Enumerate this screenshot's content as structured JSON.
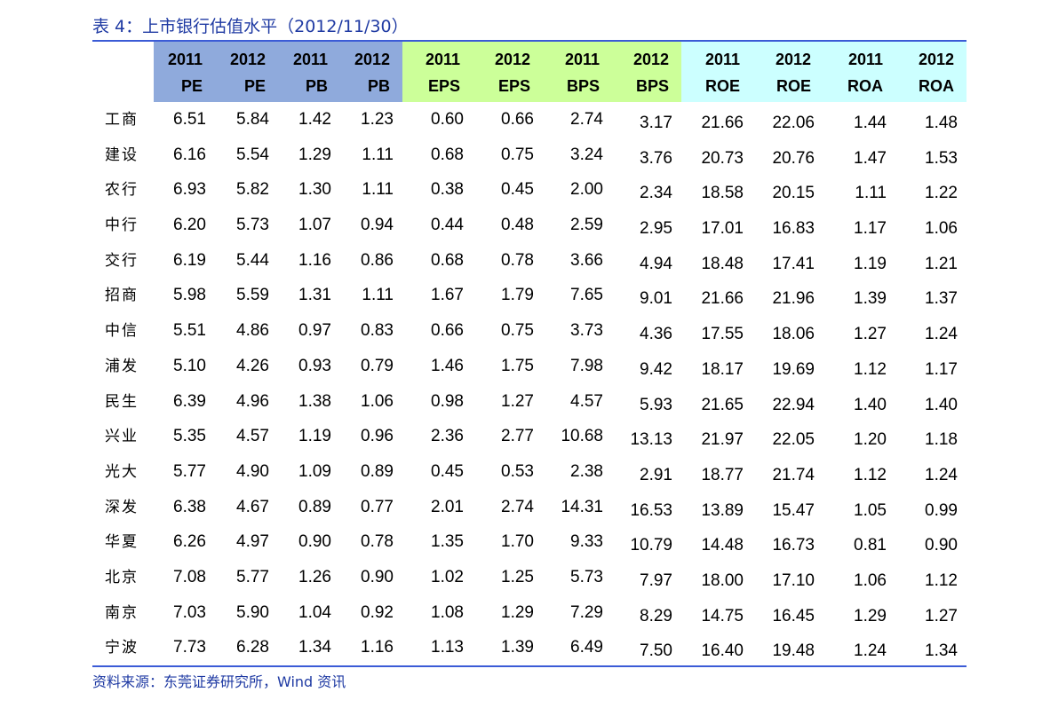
{
  "title": "表 4：上市银行估值水平（2012/11/30）",
  "source": "资料来源：东莞证券研究所，Wind 资讯",
  "colors": {
    "title": "#1f3aa3",
    "rule": "#3b5bd6",
    "group_pe_pb": "#8faadc",
    "group_eps_bps": "#ccff99",
    "group_roe_roa": "#ccffff"
  },
  "columns": [
    {
      "year": "2011",
      "metric": "PE"
    },
    {
      "year": "2012",
      "metric": "PE"
    },
    {
      "year": "2011",
      "metric": "PB"
    },
    {
      "year": "2012",
      "metric": "PB"
    },
    {
      "year": "2011",
      "metric": "EPS"
    },
    {
      "year": "2012",
      "metric": "EPS"
    },
    {
      "year": "2011",
      "metric": "BPS"
    },
    {
      "year": "2012",
      "metric": "BPS"
    },
    {
      "year": "2011",
      "metric": "ROE"
    },
    {
      "year": "2012",
      "metric": "ROE"
    },
    {
      "year": "2011",
      "metric": "ROA"
    },
    {
      "year": "2012",
      "metric": "ROA"
    }
  ],
  "rows": [
    {
      "bank": "工商",
      "values": [
        "6.51",
        "5.84",
        "1.42",
        "1.23",
        "0.60",
        "0.66",
        "2.74",
        "3.17",
        "21.66",
        "22.06",
        "1.44",
        "1.48"
      ]
    },
    {
      "bank": "建设",
      "values": [
        "6.16",
        "5.54",
        "1.29",
        "1.11",
        "0.68",
        "0.75",
        "3.24",
        "3.76",
        "20.73",
        "20.76",
        "1.47",
        "1.53"
      ]
    },
    {
      "bank": "农行",
      "values": [
        "6.93",
        "5.82",
        "1.30",
        "1.11",
        "0.38",
        "0.45",
        "2.00",
        "2.34",
        "18.58",
        "20.15",
        "1.11",
        "1.22"
      ]
    },
    {
      "bank": "中行",
      "values": [
        "6.20",
        "5.73",
        "1.07",
        "0.94",
        "0.44",
        "0.48",
        "2.59",
        "2.95",
        "17.01",
        "16.83",
        "1.17",
        "1.06"
      ]
    },
    {
      "bank": "交行",
      "values": [
        "6.19",
        "5.44",
        "1.16",
        "0.86",
        "0.68",
        "0.78",
        "3.66",
        "4.94",
        "18.48",
        "17.41",
        "1.19",
        "1.21"
      ]
    },
    {
      "bank": "招商",
      "values": [
        "5.98",
        "5.59",
        "1.31",
        "1.11",
        "1.67",
        "1.79",
        "7.65",
        "9.01",
        "21.66",
        "21.96",
        "1.39",
        "1.37"
      ]
    },
    {
      "bank": "中信",
      "values": [
        "5.51",
        "4.86",
        "0.97",
        "0.83",
        "0.66",
        "0.75",
        "3.73",
        "4.36",
        "17.55",
        "18.06",
        "1.27",
        "1.24"
      ]
    },
    {
      "bank": "浦发",
      "values": [
        "5.10",
        "4.26",
        "0.93",
        "0.79",
        "1.46",
        "1.75",
        "7.98",
        "9.42",
        "18.17",
        "19.69",
        "1.12",
        "1.17"
      ]
    },
    {
      "bank": "民生",
      "values": [
        "6.39",
        "4.96",
        "1.38",
        "1.06",
        "0.98",
        "1.27",
        "4.57",
        "5.93",
        "21.65",
        "22.94",
        "1.40",
        "1.40"
      ]
    },
    {
      "bank": "兴业",
      "values": [
        "5.35",
        "4.57",
        "1.19",
        "0.96",
        "2.36",
        "2.77",
        "10.68",
        "13.13",
        "21.97",
        "22.05",
        "1.20",
        "1.18"
      ]
    },
    {
      "bank": "光大",
      "values": [
        "5.77",
        "4.90",
        "1.09",
        "0.89",
        "0.45",
        "0.53",
        "2.38",
        "2.91",
        "18.77",
        "21.74",
        "1.12",
        "1.24"
      ]
    },
    {
      "bank": "深发",
      "values": [
        "6.38",
        "4.67",
        "0.89",
        "0.77",
        "2.01",
        "2.74",
        "14.31",
        "16.53",
        "13.89",
        "15.47",
        "1.05",
        "0.99"
      ]
    },
    {
      "bank": "华夏",
      "values": [
        "6.26",
        "4.97",
        "0.90",
        "0.78",
        "1.35",
        "1.70",
        "9.33",
        "10.79",
        "14.48",
        "16.73",
        "0.81",
        "0.90"
      ]
    },
    {
      "bank": "北京",
      "values": [
        "7.08",
        "5.77",
        "1.26",
        "0.90",
        "1.02",
        "1.25",
        "5.73",
        "7.97",
        "18.00",
        "17.10",
        "1.06",
        "1.12"
      ]
    },
    {
      "bank": "南京",
      "values": [
        "7.03",
        "5.90",
        "1.04",
        "0.92",
        "1.08",
        "1.29",
        "7.29",
        "8.29",
        "14.75",
        "16.45",
        "1.29",
        "1.27"
      ]
    },
    {
      "bank": "宁波",
      "values": [
        "7.73",
        "6.28",
        "1.34",
        "1.16",
        "1.13",
        "1.39",
        "6.49",
        "7.50",
        "16.40",
        "19.48",
        "1.24",
        "1.34"
      ]
    }
  ]
}
